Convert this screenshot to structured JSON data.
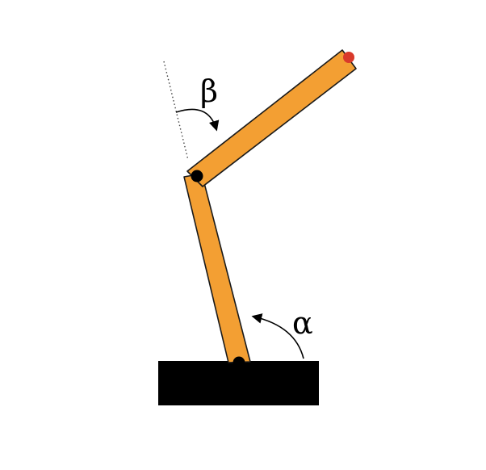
{
  "diagram": {
    "labels": {
      "beta": "β",
      "alpha": "α"
    },
    "colors": {
      "link": "#f39f33",
      "outline": "#1a1a1a",
      "base": "#000000",
      "joint": "#000000",
      "end_effector": "#d9392b",
      "reference_line": "#444444",
      "arrow": "#000000"
    }
  }
}
